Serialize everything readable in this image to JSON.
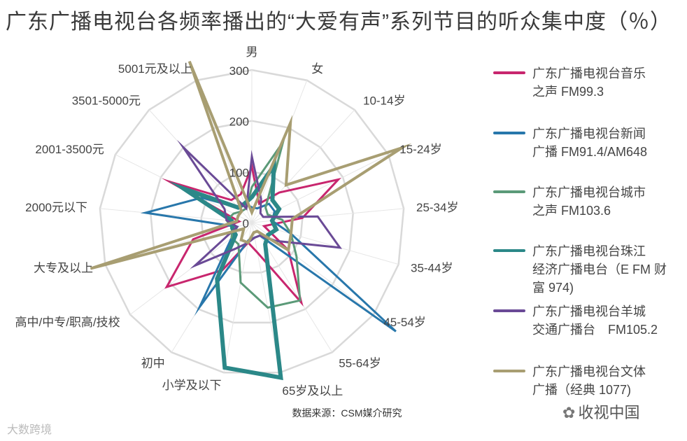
{
  "chart_data": {
    "type": "radar",
    "title": "广东广播电视台各频率播出的“大爱有声”系列节目的听众集中度（％）",
    "categories": [
      "男",
      "女",
      "10-14岁",
      "15-24岁",
      "25-34岁",
      "35-44岁",
      "45-54岁",
      "55-64岁",
      "65岁及以上",
      "小学及以下",
      "初中",
      "高中/中专/职高/技校",
      "大专及以上",
      "2000元以下",
      "2001-3500元",
      "3501-5000元",
      "5001元及以上"
    ],
    "radial_ticks": [
      "0",
      "100",
      "200",
      "300"
    ],
    "rmax": 300,
    "grid": true,
    "legend_position": "right",
    "series": [
      {
        "name": "广东广播电视台音乐\n之声 FM99.3",
        "color": "#c8266e",
        "width": 3,
        "values": [
          110,
          40,
          80,
          190,
          100,
          25,
          90,
          185,
          60,
          40,
          110,
          210,
          120,
          25,
          180,
          60,
          60
        ]
      },
      {
        "name": "广东广播电视台新闻\n广播 FM91.4/AM648",
        "color": "#2877ab",
        "width": 3,
        "values": [
          30,
          30,
          50,
          50,
          40,
          80,
          355,
          30,
          30,
          35,
          195,
          50,
          30,
          210,
          110,
          40,
          40
        ]
      },
      {
        "name": "广东广播电视台城市\n之声 FM103.6",
        "color": "#5b9a78",
        "width": 3,
        "values": [
          70,
          170,
          40,
          35,
          60,
          80,
          110,
          180,
          170,
          120,
          50,
          50,
          40,
          50,
          40,
          30,
          30
        ]
      },
      {
        "name": "广东广播电视台珠江\n经济广播电台（E FM 财\n富 974)",
        "color": "#2b8888",
        "width": 6,
        "values": [
          50,
          120,
          60,
          60,
          40,
          50,
          40,
          50,
          310,
          290,
          130,
          40,
          40,
          40,
          150,
          40,
          40
        ]
      },
      {
        "name": "广东广播电视台羊城\n交通广播台　FM105.2",
        "color": "#6a4a96",
        "width": 3,
        "values": [
          130,
          50,
          25,
          25,
          130,
          180,
          60,
          30,
          30,
          40,
          60,
          140,
          30,
          50,
          60,
          200,
          30
        ]
      },
      {
        "name": "广东广播电视台文体\n广播（经典 1077)",
        "color": "#a89e72",
        "width": 4,
        "values": [
          20,
          210,
          100,
          330,
          80,
          80,
          90,
          20,
          20,
          40,
          40,
          20,
          330,
          30,
          30,
          30,
          340
        ]
      }
    ]
  },
  "source": "数据来源：CSM媒介研究",
  "watermark_left": "大数跨境",
  "watermark_right": "收视中国"
}
